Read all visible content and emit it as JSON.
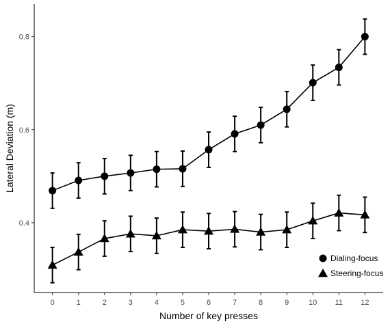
{
  "chart_data": {
    "type": "line",
    "title": "",
    "xlabel": "Number of key presses",
    "ylabel": "Lateral Deviation (m)",
    "x": [
      0,
      1,
      2,
      3,
      4,
      5,
      6,
      7,
      8,
      9,
      10,
      11,
      12
    ],
    "xlim": [
      -0.7,
      12.7
    ],
    "ylim": [
      0.25,
      0.87
    ],
    "x_ticks": [
      "0",
      "1",
      "2",
      "3",
      "4",
      "5",
      "6",
      "7",
      "8",
      "9",
      "10",
      "11",
      "12"
    ],
    "y_ticks": [
      {
        "value": 0.4,
        "label": "0.4"
      },
      {
        "value": 0.6,
        "label": "0.6"
      },
      {
        "value": 0.8,
        "label": "0.8"
      }
    ],
    "grid": false,
    "legend_position": "bottom-right",
    "series": [
      {
        "name": "Dialing-focus",
        "marker": "circle",
        "color": "#000000",
        "values": [
          0.469,
          0.491,
          0.5,
          0.507,
          0.515,
          0.516,
          0.557,
          0.591,
          0.61,
          0.644,
          0.701,
          0.734,
          0.8
        ],
        "error": [
          0.038,
          0.038,
          0.038,
          0.038,
          0.038,
          0.038,
          0.038,
          0.038,
          0.038,
          0.038,
          0.038,
          0.038,
          0.038
        ]
      },
      {
        "name": "Steering-focus",
        "marker": "triangle",
        "color": "#000000",
        "values": [
          0.309,
          0.337,
          0.366,
          0.376,
          0.372,
          0.385,
          0.382,
          0.386,
          0.38,
          0.385,
          0.404,
          0.421,
          0.417
        ],
        "error": [
          0.038,
          0.038,
          0.038,
          0.038,
          0.038,
          0.038,
          0.038,
          0.038,
          0.038,
          0.038,
          0.038,
          0.038,
          0.038
        ]
      }
    ]
  }
}
